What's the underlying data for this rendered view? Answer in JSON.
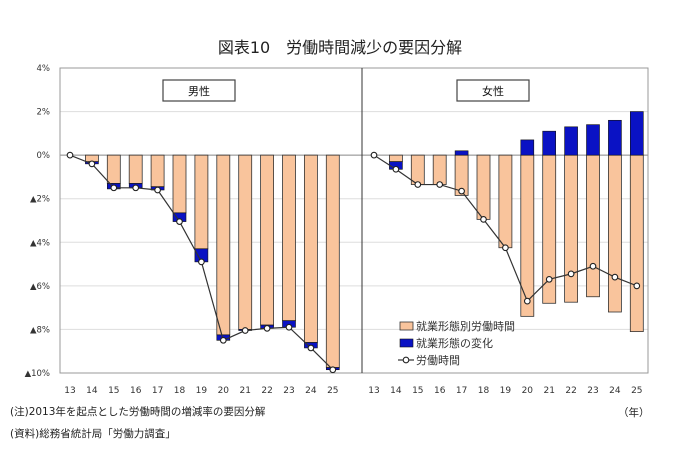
{
  "chart_data": {
    "type": "bar",
    "title": "図表10　労働時間減少の要因分解",
    "xlabel": "（年）",
    "ylabel": "",
    "ylim": [
      -10,
      4
    ],
    "yticks": [
      4,
      2,
      0,
      -2,
      -4,
      -6,
      -8,
      -10
    ],
    "ytick_labels": [
      "4%",
      "2%",
      "0%",
      "▲2%",
      "▲4%",
      "▲6%",
      "▲8%",
      "▲10%"
    ],
    "grid": true,
    "categories": [
      "13",
      "14",
      "15",
      "16",
      "17",
      "18",
      "19",
      "20",
      "21",
      "22",
      "23",
      "24",
      "25"
    ],
    "legend": {
      "placement": "bottom-right-panel",
      "entries": [
        "就業形態別労働時間",
        "就業形態の変化",
        "労働時間"
      ]
    },
    "colors": {
      "orange": "#f9c49c",
      "blue": "#0a12c4",
      "line": "#333333"
    },
    "panels": [
      {
        "label": "男性",
        "series": [
          {
            "name": "就業形態別労働時間",
            "type": "bar",
            "values": [
              0,
              -0.3,
              -1.3,
              -1.3,
              -1.45,
              -2.65,
              -4.3,
              -8.25,
              -8.0,
              -7.8,
              -7.6,
              -8.6,
              -9.75
            ]
          },
          {
            "name": "就業形態の変化",
            "type": "bar",
            "values": [
              0,
              -0.1,
              -0.25,
              -0.2,
              -0.15,
              -0.4,
              -0.6,
              -0.25,
              -0.05,
              -0.15,
              -0.3,
              -0.25,
              -0.1
            ]
          },
          {
            "name": "労働時間",
            "type": "line",
            "values": [
              0,
              -0.4,
              -1.5,
              -1.5,
              -1.6,
              -3.05,
              -4.9,
              -8.5,
              -8.05,
              -7.95,
              -7.9,
              -8.85,
              -9.85
            ]
          }
        ]
      },
      {
        "label": "女性",
        "series": [
          {
            "name": "就業形態別労働時間",
            "type": "bar",
            "values": [
              0,
              -0.3,
              -1.35,
              -1.35,
              -1.85,
              -2.95,
              -4.25,
              -7.4,
              -6.8,
              -6.75,
              -6.5,
              -7.2,
              -8.1
            ]
          },
          {
            "name": "就業形態の変化",
            "type": "bar",
            "values": [
              0,
              -0.35,
              0,
              0,
              0.2,
              0,
              0,
              0.7,
              1.1,
              1.3,
              1.4,
              1.6,
              2.0
            ]
          },
          {
            "name": "労働時間",
            "type": "line",
            "values": [
              0,
              -0.65,
              -1.35,
              -1.35,
              -1.65,
              -2.95,
              -4.25,
              -6.7,
              -5.7,
              -5.45,
              -5.1,
              -5.6,
              -6.0
            ]
          }
        ]
      }
    ]
  },
  "notes": {
    "note": "(注)2013年を起点とした労働時間の増減率の要因分解",
    "source": "(資料)総務省統計局「労働力調査」",
    "unit": "（年）"
  }
}
